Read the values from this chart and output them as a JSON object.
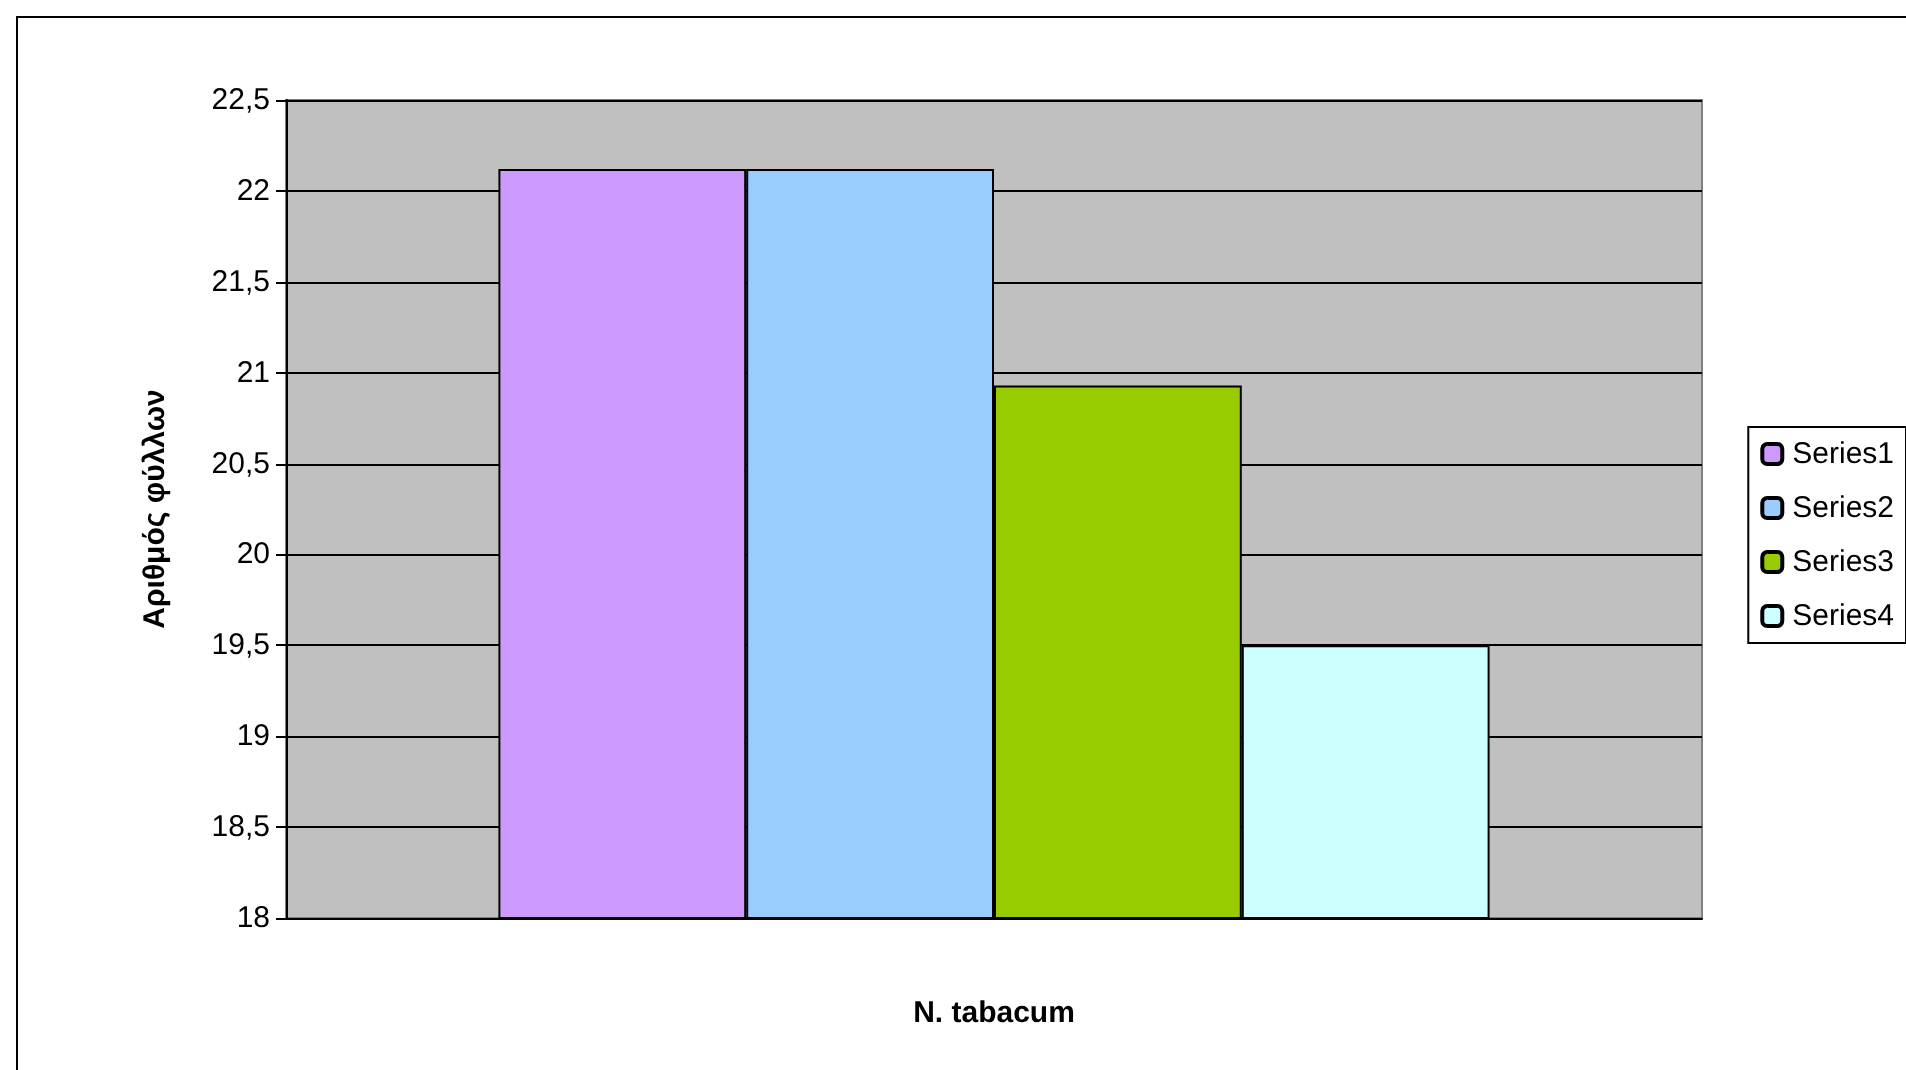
{
  "chart_data": {
    "type": "bar",
    "xlabel": "N. tabacum",
    "ylabel": "Αριθμός φύλλων",
    "categories": [
      null
    ],
    "series": [
      {
        "name": "Series1",
        "color": "#cc99ff",
        "values": [
          22.12
        ]
      },
      {
        "name": "Series2",
        "color": "#99ccff",
        "values": [
          22.12
        ]
      },
      {
        "name": "Series3",
        "color": "#99cc00",
        "values": [
          20.93
        ]
      },
      {
        "name": "Series4",
        "color": "#ccffff",
        "values": [
          19.5
        ]
      }
    ],
    "ylim": [
      18,
      22.5
    ],
    "yticks": [
      {
        "value": 18,
        "label": "18"
      },
      {
        "value": 18.5,
        "label": "18,5"
      },
      {
        "value": 19,
        "label": "19"
      },
      {
        "value": 19.5,
        "label": "19,5"
      },
      {
        "value": 20,
        "label": "20"
      },
      {
        "value": 20.5,
        "label": "20,5"
      },
      {
        "value": 21,
        "label": "21"
      },
      {
        "value": 21.5,
        "label": "21,5"
      },
      {
        "value": 22,
        "label": "22"
      },
      {
        "value": 22.5,
        "label": "22,5"
      }
    ],
    "grid": "y",
    "legend": "right"
  }
}
